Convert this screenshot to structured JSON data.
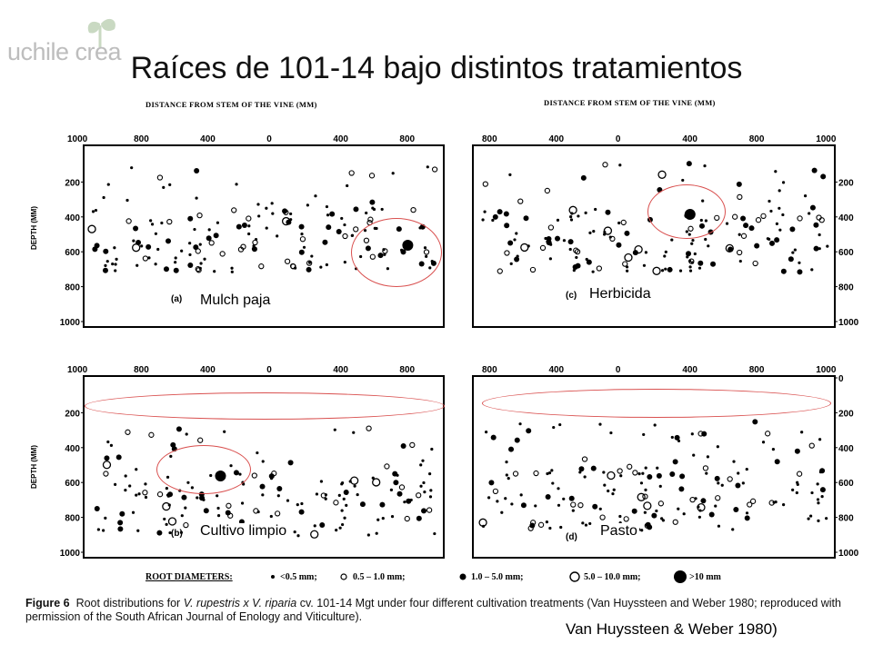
{
  "logo": {
    "text": "uchile crea",
    "icon": "sprout-icon"
  },
  "title": "Raíces de 101-14 bajo distintos tratamientos",
  "figure": {
    "x_axis_title": "DISTANCE FROM STEM OF THE VINE (MM)",
    "depth_axis_title": "DEPTH (MM)",
    "x_ticks_left": [
      "1000",
      "800",
      "400",
      "0",
      "400",
      "800"
    ],
    "x_ticks_right": [
      "800",
      "400",
      "0",
      "400",
      "800",
      "1000"
    ],
    "depth_ticks": [
      "200",
      "400",
      "600",
      "800",
      "1000"
    ],
    "depth_ticks_with_zero": [
      "0",
      "200",
      "400",
      "600",
      "800",
      "1000"
    ],
    "panels": [
      {
        "id": "a",
        "tag": "(a)",
        "label": "Mulch paja"
      },
      {
        "id": "c",
        "tag": "(c)",
        "label": "Herbicida"
      },
      {
        "id": "b",
        "tag": "(b)",
        "label": "Cultivo limpio"
      },
      {
        "id": "d",
        "tag": "(d)",
        "label": "Pasto"
      }
    ],
    "legend": {
      "title": "ROOT DIAMETERS:",
      "items": [
        "<0.5 mm;",
        "0.5 – 1.0 mm;",
        "1.0 – 5.0 mm;",
        "5.0 – 10.0 mm;",
        ">10 mm"
      ]
    },
    "highlight_color": "#d9504f"
  },
  "caption": {
    "label": "Figure 6",
    "text_before": "Root distributions for ",
    "species": "V. rupestris x V. riparia",
    "text_after": " cv. 101-14 Mgt under four different cultivation treatments (Van Huyssteen and Weber 1980; reproduced with permission of the South African Journal of Enology and Viticulture)."
  },
  "credit": "Van Huyssteen & Weber 1980)"
}
